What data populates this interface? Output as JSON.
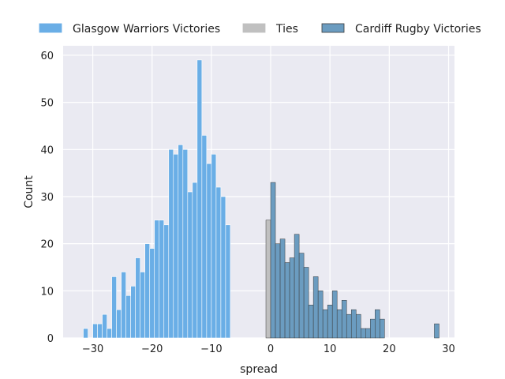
{
  "chart_data": {
    "type": "bar",
    "xlabel": "spread",
    "ylabel": "Count",
    "xlim": [
      -35,
      31
    ],
    "ylim": [
      0,
      62
    ],
    "x_ticks": [
      -30,
      -20,
      -10,
      0,
      10,
      20,
      30
    ],
    "y_ticks": [
      0,
      10,
      20,
      30,
      40,
      50,
      60
    ],
    "grid": true,
    "legend_position": "top",
    "bin_width": 0.8,
    "series": [
      {
        "name": "Glasgow Warriors Victories",
        "color": "#6aaee6",
        "bins": [
          {
            "x": -31.6,
            "y": 2
          },
          {
            "x": -30.0,
            "y": 3
          },
          {
            "x": -29.2,
            "y": 3
          },
          {
            "x": -28.4,
            "y": 5
          },
          {
            "x": -27.6,
            "y": 2
          },
          {
            "x": -26.8,
            "y": 13
          },
          {
            "x": -26.0,
            "y": 6
          },
          {
            "x": -25.2,
            "y": 14
          },
          {
            "x": -24.4,
            "y": 9
          },
          {
            "x": -23.6,
            "y": 11
          },
          {
            "x": -22.8,
            "y": 17
          },
          {
            "x": -22.0,
            "y": 14
          },
          {
            "x": -21.2,
            "y": 20
          },
          {
            "x": -20.4,
            "y": 19
          },
          {
            "x": -19.6,
            "y": 25
          },
          {
            "x": -18.8,
            "y": 25
          },
          {
            "x": -18.0,
            "y": 24
          },
          {
            "x": -17.2,
            "y": 40
          },
          {
            "x": -16.4,
            "y": 39
          },
          {
            "x": -15.6,
            "y": 41
          },
          {
            "x": -14.8,
            "y": 40
          },
          {
            "x": -14.0,
            "y": 31
          },
          {
            "x": -13.2,
            "y": 33
          },
          {
            "x": -12.4,
            "y": 59
          },
          {
            "x": -11.6,
            "y": 43
          },
          {
            "x": -10.8,
            "y": 37
          },
          {
            "x": -10.0,
            "y": 39
          },
          {
            "x": -9.2,
            "y": 32
          },
          {
            "x": -8.4,
            "y": 30
          },
          {
            "x": -7.6,
            "y": 24
          }
        ]
      },
      {
        "name": "Ties",
        "color": "#c0c0c0",
        "bins": [
          {
            "x": -0.8,
            "y": 25
          }
        ]
      },
      {
        "name": "Cardiff Rugby Victories",
        "color": "#6b9cc0",
        "bins": [
          {
            "x": 0.0,
            "y": 33
          },
          {
            "x": 0.8,
            "y": 20
          },
          {
            "x": 1.6,
            "y": 21
          },
          {
            "x": 2.4,
            "y": 16
          },
          {
            "x": 3.2,
            "y": 17
          },
          {
            "x": 4.0,
            "y": 22
          },
          {
            "x": 4.8,
            "y": 18
          },
          {
            "x": 5.6,
            "y": 15
          },
          {
            "x": 6.4,
            "y": 7
          },
          {
            "x": 7.2,
            "y": 13
          },
          {
            "x": 8.0,
            "y": 10
          },
          {
            "x": 8.8,
            "y": 6
          },
          {
            "x": 9.6,
            "y": 7
          },
          {
            "x": 10.4,
            "y": 10
          },
          {
            "x": 11.2,
            "y": 6
          },
          {
            "x": 12.0,
            "y": 8
          },
          {
            "x": 12.8,
            "y": 5
          },
          {
            "x": 13.6,
            "y": 6
          },
          {
            "x": 14.4,
            "y": 5
          },
          {
            "x": 15.2,
            "y": 2
          },
          {
            "x": 16.0,
            "y": 2
          },
          {
            "x": 16.8,
            "y": 4
          },
          {
            "x": 17.6,
            "y": 6
          },
          {
            "x": 18.4,
            "y": 4
          },
          {
            "x": 19.2,
            "y": 0
          },
          {
            "x": 20.0,
            "y": 0
          },
          {
            "x": 20.8,
            "y": 0
          },
          {
            "x": 21.6,
            "y": 0
          },
          {
            "x": 22.4,
            "y": 0
          },
          {
            "x": 23.2,
            "y": 0
          },
          {
            "x": 24.0,
            "y": 0
          },
          {
            "x": 24.8,
            "y": 0
          },
          {
            "x": 25.6,
            "y": 0
          },
          {
            "x": 27.6,
            "y": 3
          }
        ]
      }
    ]
  }
}
